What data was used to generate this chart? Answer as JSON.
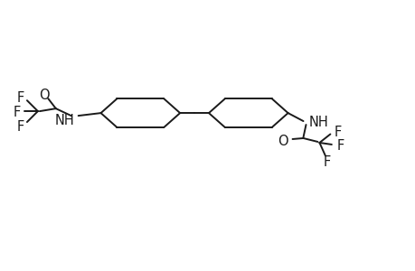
{
  "bg_color": "#ffffff",
  "line_color": "#1a1a1a",
  "line_width": 1.4,
  "font_size": 10.5,
  "figsize": [
    4.6,
    3.0
  ],
  "dpi": 100,
  "xlim": [
    0,
    46
  ],
  "ylim": [
    0,
    30
  ]
}
